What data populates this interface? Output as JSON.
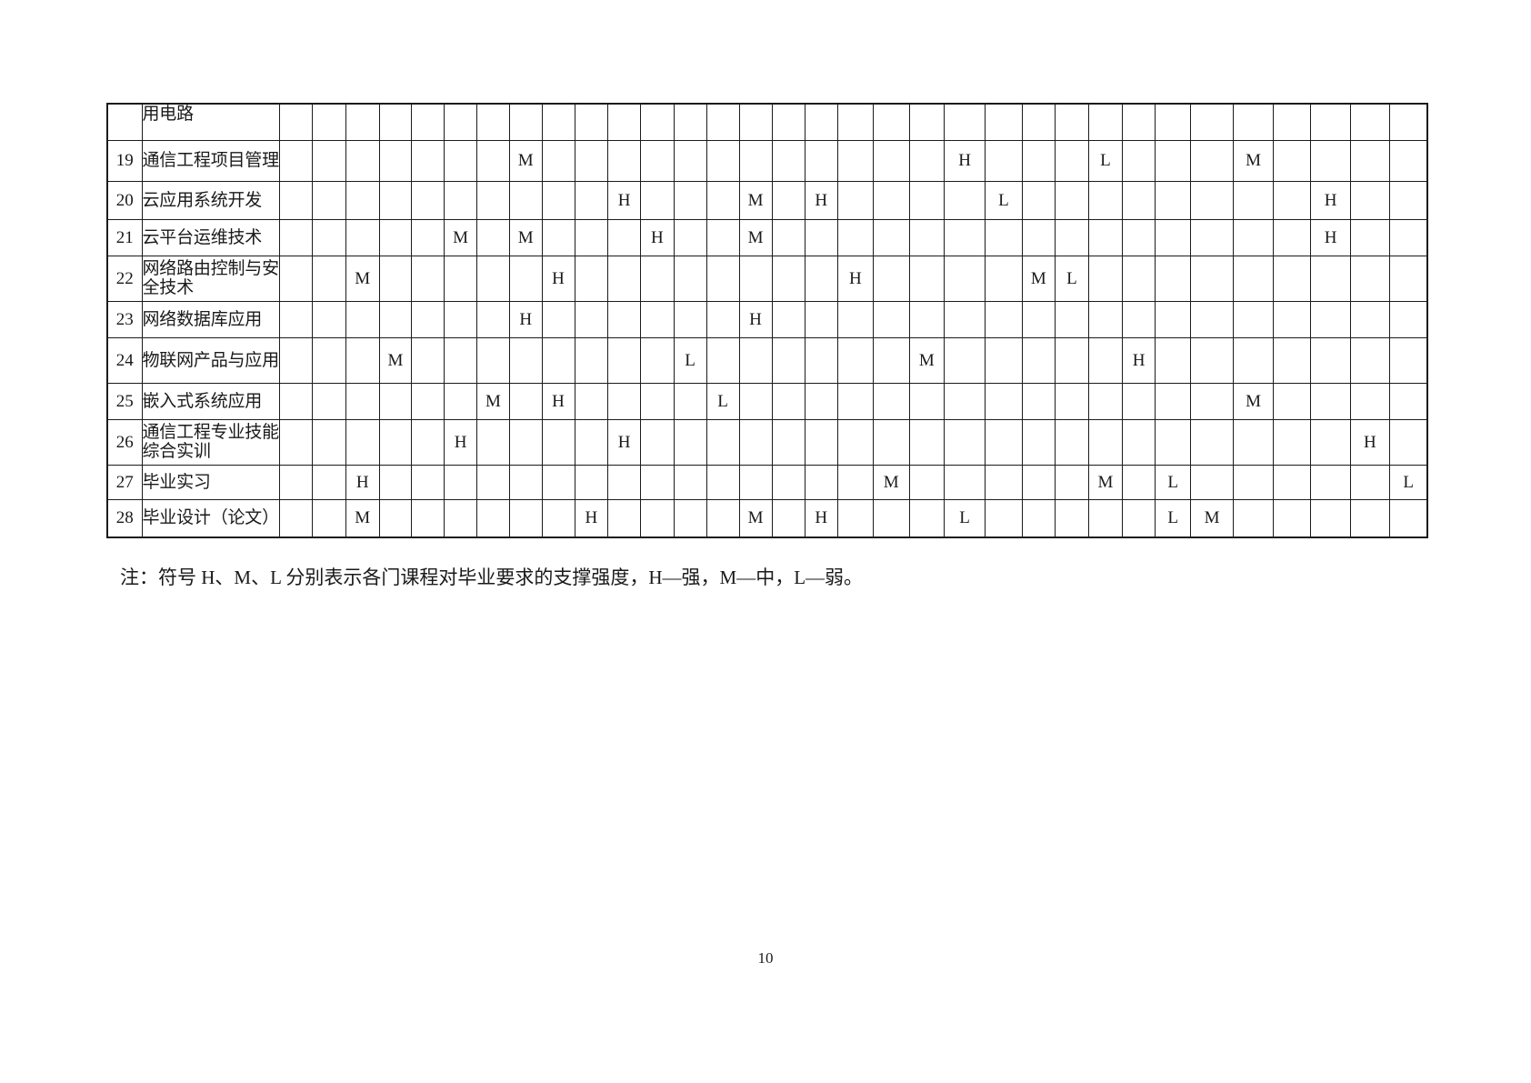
{
  "page": {
    "number": "10"
  },
  "note": "注：符号 H、M、L 分别表示各门课程对毕业要求的支撑强度，H—强，M—中，L—弱。",
  "table": {
    "data_column_count": 33,
    "rows": [
      {
        "no": "",
        "course": "用电路",
        "marks": {}
      },
      {
        "no": "19",
        "course": "通信工程项目管理",
        "marks": {
          "8": "M",
          "21": "H",
          "25": "L",
          "29": "M"
        }
      },
      {
        "no": "20",
        "course": "云应用系统开发",
        "marks": {
          "11": "H",
          "15": "M",
          "17": "H",
          "22": "L",
          "31": "H"
        }
      },
      {
        "no": "21",
        "course": "云平台运维技术",
        "marks": {
          "6": "M",
          "8": "M",
          "12": "H",
          "15": "M",
          "31": "H"
        }
      },
      {
        "no": "22",
        "course": "网络路由控制与安全技术",
        "marks": {
          "3": "M",
          "9": "H",
          "18": "H",
          "23": "M",
          "24": "L"
        }
      },
      {
        "no": "23",
        "course": "网络数据库应用",
        "marks": {
          "8": "H",
          "15": "H"
        }
      },
      {
        "no": "24",
        "course": "物联网产品与应用",
        "marks": {
          "4": "M",
          "13": "L",
          "20": "M",
          "26": "H"
        }
      },
      {
        "no": "25",
        "course": "嵌入式系统应用",
        "marks": {
          "7": "M",
          "9": "H",
          "14": "L",
          "29": "M"
        }
      },
      {
        "no": "26",
        "course": "通信工程专业技能综合实训",
        "marks": {
          "6": "H",
          "11": "H",
          "32": "H"
        }
      },
      {
        "no": "27",
        "course": "毕业实习",
        "marks": {
          "3": "H",
          "19": "M",
          "25": "M",
          "27": "L",
          "33": "L"
        }
      },
      {
        "no": "28",
        "course": "毕业设计（论文）",
        "marks": {
          "3": "M",
          "10": "H",
          "15": "M",
          "17": "H",
          "21": "L",
          "27": "L",
          "28": "M"
        }
      }
    ]
  }
}
